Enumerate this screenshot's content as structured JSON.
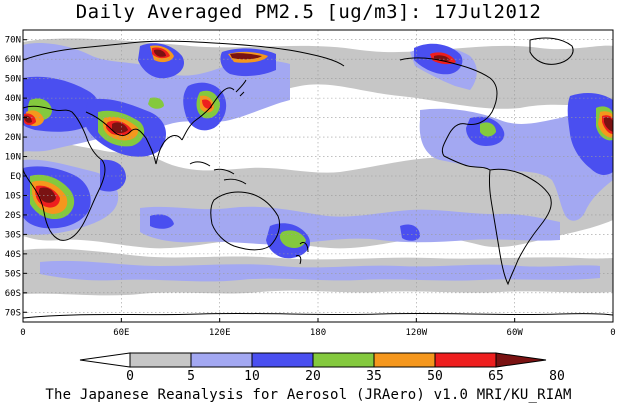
{
  "title": "Daily Averaged PM2.5 [ug/m3]: 17Jul2012",
  "credit": "The Japanese Reanalysis for Aerosol (JRAero) v1.0 MRI/KU_RIAM",
  "lat_labels": [
    "70N",
    "60N",
    "50N",
    "40N",
    "30N",
    "20N",
    "10N",
    "EQ",
    "10S",
    "20S",
    "30S",
    "40S",
    "50S",
    "60S",
    "70S"
  ],
  "lon_labels": [
    "0",
    "60E",
    "120E",
    "180",
    "120W",
    "60W",
    "0"
  ],
  "colorbar": {
    "levels": [
      "0",
      "5",
      "10",
      "20",
      "35",
      "50",
      "65",
      "80"
    ],
    "colors": [
      "#ffffff",
      "#c6c6c6",
      "#a3a8f2",
      "#4a4ff0",
      "#84c93e",
      "#f5971d",
      "#ee1e1e",
      "#7a1212"
    ]
  }
}
